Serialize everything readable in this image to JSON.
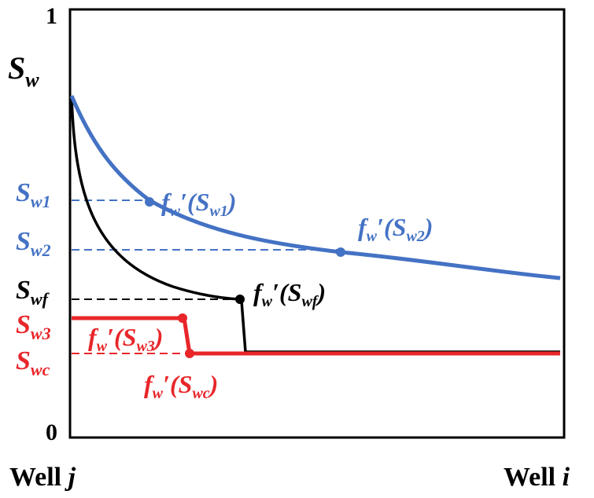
{
  "axis": {
    "y_top_label": "1",
    "y_bottom_label": "0",
    "y_title_main": "S",
    "y_title_sub": "w",
    "x_left_label": "Well ",
    "x_left_var": "j",
    "x_right_label": "Well ",
    "x_right_var": "i"
  },
  "levels": {
    "sw1": {
      "main": "S",
      "sub": "w1"
    },
    "sw2": {
      "main": "S",
      "sub": "w2"
    },
    "swf": {
      "main": "S",
      "sub": "wf"
    },
    "sw3": {
      "main": "S",
      "sub": "w3"
    },
    "swc": {
      "main": "S",
      "sub": "wc"
    }
  },
  "annotations": {
    "fw_sw1": {
      "f": "f",
      "fsub": "w",
      "prime": "′(S",
      "ssub": "w1",
      "close": ")"
    },
    "fw_sw2": {
      "f": "f",
      "fsub": "w",
      "prime": "′(S",
      "ssub": "w2",
      "close": ")"
    },
    "fw_swf": {
      "f": "f",
      "fsub": "w",
      "prime": "′(S",
      "ssub": "wf",
      "close": ")"
    },
    "fw_sw3": {
      "f": "f",
      "fsub": "w",
      "prime": "′(S",
      "ssub": "w3",
      "close": ")"
    },
    "fw_swc": {
      "f": "f",
      "fsub": "w",
      "prime": "′(S",
      "ssub": "wc",
      "close": ")"
    }
  },
  "colors": {
    "blue": "#4472C4",
    "black": "#000000",
    "red": "#E8262A",
    "frame": "#000000"
  }
}
